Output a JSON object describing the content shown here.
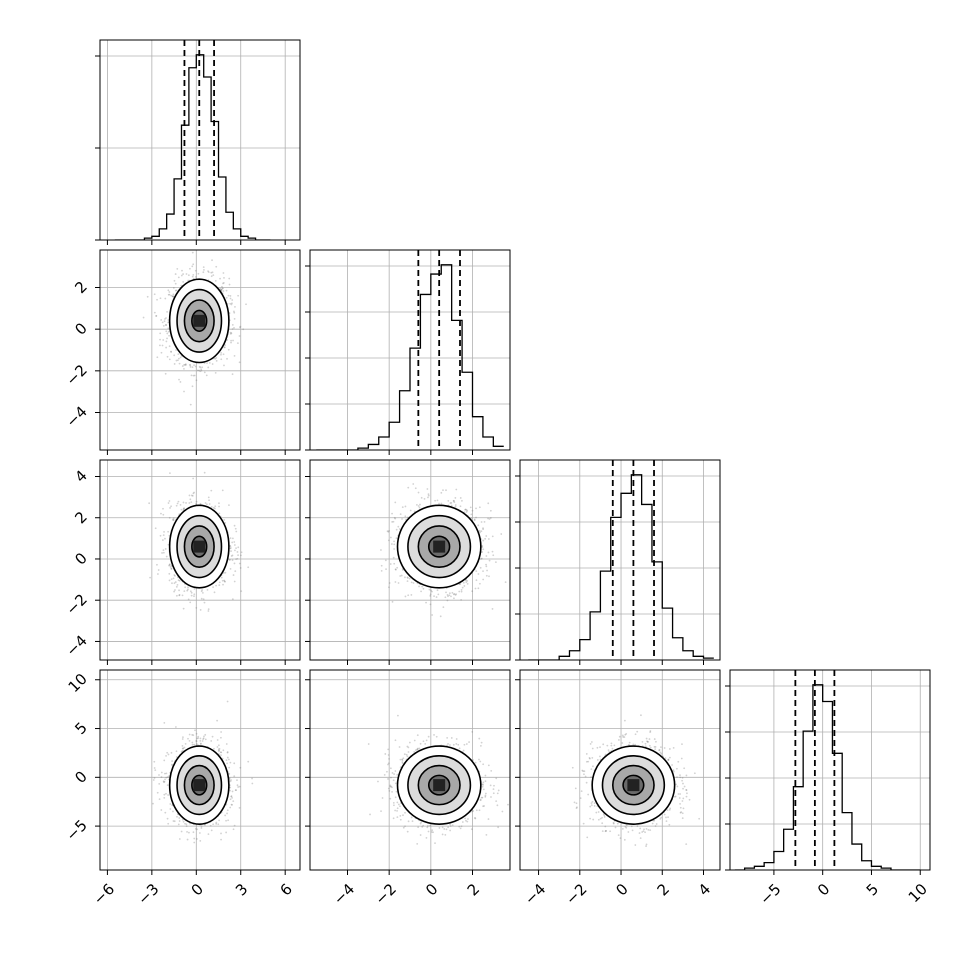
{
  "chart_data": {
    "type": "corner",
    "n_params": 4,
    "colors": {
      "line": "#000000",
      "scatter": "#7f7f7f",
      "grid": "#b0b0b0",
      "background": "#ffffff"
    },
    "grid": true,
    "params": [
      {
        "range": [
          -6.5,
          7
        ],
        "ticks": [
          -6,
          -3,
          0,
          3,
          6
        ],
        "tick_labels": [
          "−6",
          "−3",
          "0",
          "3",
          "6"
        ],
        "mean": 0.2,
        "std": 1.0,
        "quantiles": [
          -0.8,
          0.2,
          1.2
        ]
      },
      {
        "range": [
          -5.8,
          3.8
        ],
        "ticks": [
          -4,
          -2,
          0,
          2
        ],
        "tick_labels": [
          "−4",
          "−2",
          "0",
          "2"
        ],
        "mean": 0.4,
        "std": 1.0,
        "quantiles": [
          -0.6,
          0.4,
          1.4
        ]
      },
      {
        "range": [
          -4.9,
          4.8
        ],
        "ticks": [
          -4,
          -2,
          0,
          2,
          4
        ],
        "tick_labels": [
          "−4",
          "−2",
          "0",
          "2",
          "4"
        ],
        "mean": 0.6,
        "std": 1.0,
        "quantiles": [
          -0.4,
          0.6,
          1.6
        ]
      },
      {
        "range": [
          -9.5,
          11
        ],
        "ticks": [
          -5,
          0,
          5,
          10
        ],
        "tick_labels": [
          "−5",
          "0",
          "5",
          "10"
        ],
        "mean": -0.8,
        "std": 2.0,
        "quantiles": [
          -2.8,
          -0.8,
          1.2
        ]
      }
    ],
    "hist_yticks": [
      [
        0.0,
        0.2,
        0.4
      ],
      [
        0.0,
        0.1,
        0.2,
        0.3,
        0.4
      ],
      [
        0.0,
        0.1,
        0.2,
        0.3,
        0.4
      ],
      [
        0.0,
        0.05,
        0.1,
        0.15,
        0.2
      ]
    ],
    "histograms": [
      {
        "edges": [
          -5.5,
          -5,
          -4.5,
          -4,
          -3.5,
          -3,
          -2.5,
          -2,
          -1.5,
          -1,
          -0.5,
          0,
          0.5,
          1,
          1.5,
          2,
          2.5,
          3,
          3.5,
          4,
          4.5,
          5
        ],
        "counts": [
          0.0,
          0.0,
          0.0,
          0.0,
          0.01,
          0.02,
          0.06,
          0.14,
          0.33,
          0.62,
          0.93,
          1.0,
          0.88,
          0.64,
          0.34,
          0.15,
          0.06,
          0.02,
          0.01,
          0.0,
          0.0
        ]
      },
      {
        "edges": [
          -5.5,
          -5,
          -4.5,
          -4,
          -3.5,
          -3,
          -2.5,
          -2,
          -1.5,
          -1,
          -0.5,
          0,
          0.5,
          1,
          1.5,
          2,
          2.5,
          3,
          3.5
        ],
        "counts": [
          0.0,
          0.0,
          0.0,
          0.0,
          0.01,
          0.03,
          0.07,
          0.15,
          0.32,
          0.55,
          0.84,
          0.95,
          1.0,
          0.7,
          0.42,
          0.18,
          0.07,
          0.02
        ]
      },
      {
        "edges": [
          -4.5,
          -4,
          -3.5,
          -3,
          -2.5,
          -2,
          -1.5,
          -1,
          -0.5,
          0,
          0.5,
          1,
          1.5,
          2,
          2.5,
          3,
          3.5,
          4,
          4.5
        ],
        "counts": [
          0.0,
          0.0,
          0.0,
          0.02,
          0.05,
          0.11,
          0.26,
          0.48,
          0.77,
          0.9,
          1.0,
          0.84,
          0.53,
          0.28,
          0.12,
          0.05,
          0.02,
          0.01
        ]
      },
      {
        "edges": [
          -9,
          -8,
          -7,
          -6,
          -5,
          -4,
          -3,
          -2,
          -1,
          0,
          1,
          2,
          3,
          4,
          5,
          6,
          7,
          8,
          9,
          10
        ],
        "counts": [
          0.0,
          0.01,
          0.02,
          0.04,
          0.1,
          0.22,
          0.45,
          0.75,
          1.0,
          0.91,
          0.63,
          0.31,
          0.14,
          0.05,
          0.02,
          0.01,
          0.0,
          0.0,
          0.0
        ]
      }
    ],
    "contour_levels_sigma": [
      0.5,
      1.0,
      1.5,
      2.0
    ]
  }
}
